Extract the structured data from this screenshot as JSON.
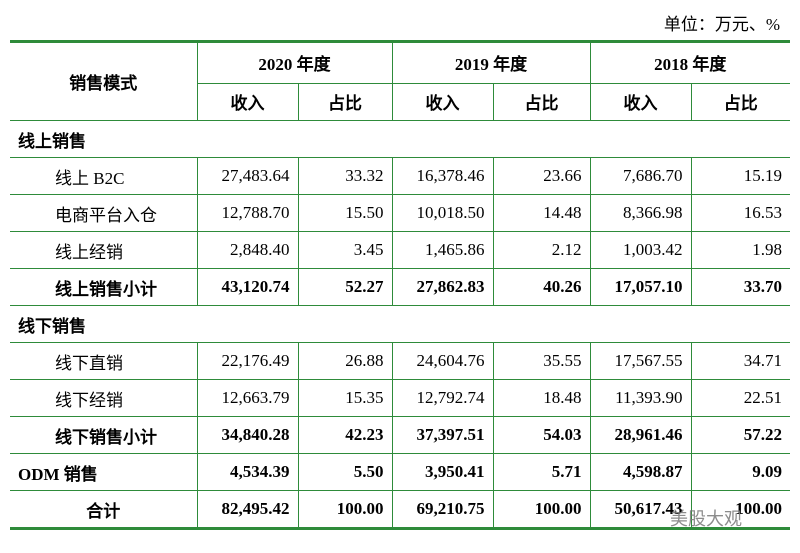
{
  "header": {
    "unit": "单位：万元、%"
  },
  "table": {
    "head": {
      "label": "销售模式",
      "years": [
        {
          "label": "2020 年度",
          "cols": [
            "收入",
            "占比"
          ]
        },
        {
          "label": "2019 年度",
          "cols": [
            "收入",
            "占比"
          ]
        },
        {
          "label": "2018 年度",
          "cols": [
            "收入",
            "占比"
          ]
        }
      ]
    },
    "sections": [
      {
        "title": "线上销售",
        "items": [
          [
            "线上 B2C",
            "27,483.64",
            "33.32",
            "16,378.46",
            "23.66",
            "7,686.70",
            "15.19"
          ],
          [
            "电商平台入仓",
            "12,788.70",
            "15.50",
            "10,018.50",
            "14.48",
            "8,366.98",
            "16.53"
          ],
          [
            "线上经销",
            "2,848.40",
            "3.45",
            "1,465.86",
            "2.12",
            "1,003.42",
            "1.98"
          ]
        ],
        "subtotal": [
          "线上销售小计",
          "43,120.74",
          "52.27",
          "27,862.83",
          "40.26",
          "17,057.10",
          "33.70"
        ]
      },
      {
        "title": "线下销售",
        "items": [
          [
            "线下直销",
            "22,176.49",
            "26.88",
            "24,604.76",
            "35.55",
            "17,567.55",
            "34.71"
          ],
          [
            "线下经销",
            "12,663.79",
            "15.35",
            "12,792.74",
            "18.48",
            "11,393.90",
            "22.51"
          ]
        ],
        "subtotal": [
          "线下销售小计",
          "34,840.28",
          "42.23",
          "37,397.51",
          "54.03",
          "28,961.46",
          "57.22"
        ]
      }
    ],
    "others": [
      [
        "ODM 销售",
        "4,534.39",
        "5.50",
        "3,950.41",
        "5.71",
        "4,598.87",
        "9.09"
      ],
      [
        "合计",
        "82,495.42",
        "100.00",
        "69,210.75",
        "100.00",
        "50,617.43",
        "100.00"
      ]
    ]
  },
  "watermark": "美股大观"
}
